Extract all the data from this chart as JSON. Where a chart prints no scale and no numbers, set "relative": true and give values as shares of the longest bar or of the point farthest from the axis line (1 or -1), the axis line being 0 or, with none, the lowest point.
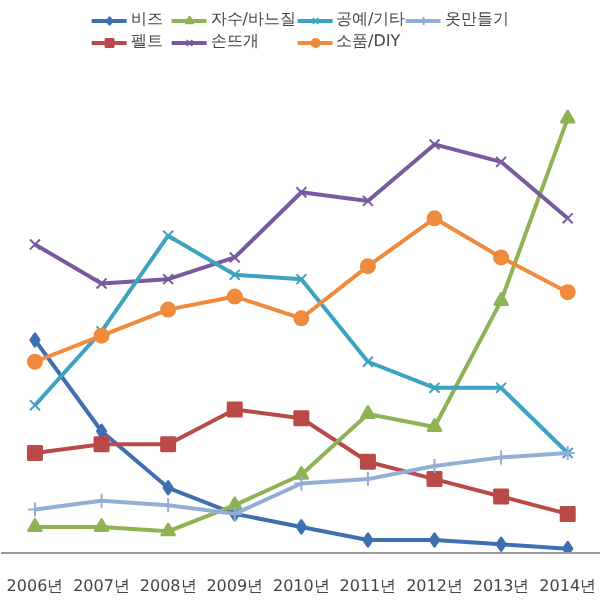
{
  "chart_data": {
    "type": "line",
    "relative": true,
    "legend": "top",
    "categories": [
      "2006년",
      "2007년",
      "2008년",
      "2009년",
      "2010년",
      "2011년",
      "2012년",
      "2013년",
      "2014년"
    ],
    "series": [
      {
        "name": "비즈",
        "color": "#3f6fb0",
        "marker": "diamond",
        "values": [
          0.49,
          0.28,
          0.15,
          0.09,
          0.06,
          0.03,
          0.03,
          0.02,
          0.01
        ]
      },
      {
        "name": "펠트",
        "color": "#b94a48",
        "marker": "square",
        "values": [
          0.23,
          0.25,
          0.25,
          0.33,
          0.31,
          0.21,
          0.17,
          0.13,
          0.09
        ]
      },
      {
        "name": "자수/바느질",
        "color": "#8fb254",
        "marker": "triangle",
        "values": [
          0.06,
          0.06,
          0.05,
          0.11,
          0.18,
          0.32,
          0.29,
          0.58,
          1
        ]
      },
      {
        "name": "손뜨개",
        "color": "#7a5a9e",
        "marker": "x",
        "values": [
          0.71,
          0.62,
          0.63,
          0.68,
          0.83,
          0.81,
          0.94,
          0.9,
          0.77
        ]
      },
      {
        "name": "공예/기타",
        "color": "#3ea3c0",
        "marker": "x",
        "values": [
          0.34,
          0.51,
          0.73,
          0.64,
          0.63,
          0.44,
          0.38,
          0.38,
          0.23
        ]
      },
      {
        "name": "소품/DIY",
        "color": "#f08a3c",
        "marker": "circle",
        "values": [
          0.44,
          0.5,
          0.56,
          0.59,
          0.54,
          0.66,
          0.77,
          0.68,
          0.6
        ]
      },
      {
        "name": "옷만들기",
        "color": "#93aed6",
        "marker": "cross",
        "values": [
          0.1,
          0.12,
          0.11,
          0.09,
          0.16,
          0.17,
          0.2,
          0.22,
          0.23
        ]
      }
    ]
  }
}
